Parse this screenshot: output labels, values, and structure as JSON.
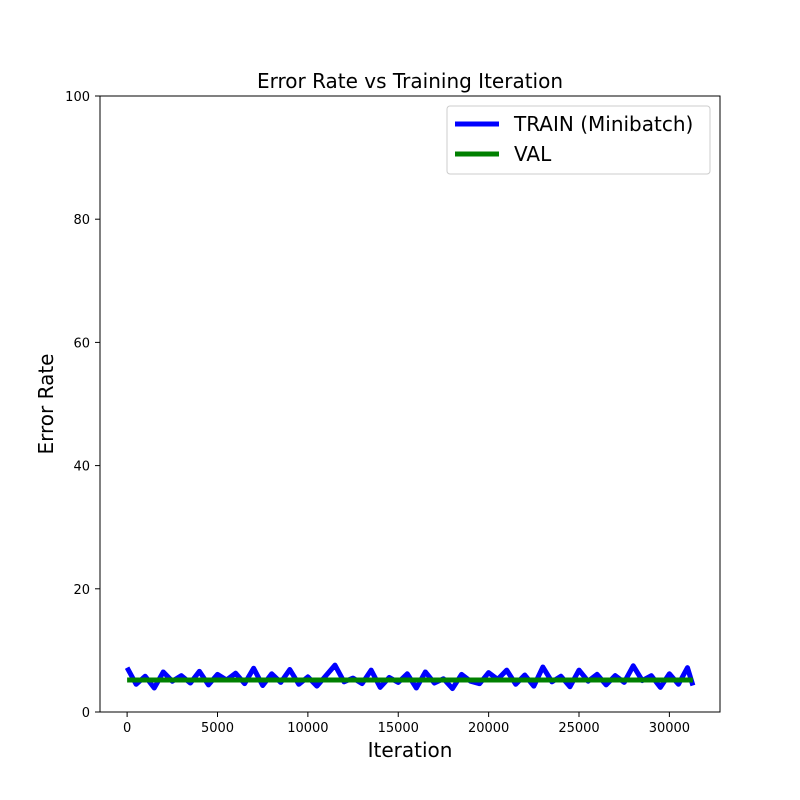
{
  "chart_data": {
    "type": "line",
    "title": "Error Rate vs Training Iteration",
    "xlabel": "Iteration",
    "ylabel": "Error Rate",
    "xlim": [
      -1500,
      32800
    ],
    "ylim": [
      0,
      100
    ],
    "xticks": [
      0,
      5000,
      10000,
      15000,
      20000,
      25000,
      30000
    ],
    "yticks": [
      0,
      20,
      40,
      60,
      80,
      100
    ],
    "grid": false,
    "legend_position": "top-right",
    "series": [
      {
        "name": "TRAIN (Minibatch)",
        "color": "#0000ff",
        "x": [
          0,
          500,
          1000,
          1500,
          2000,
          2500,
          3000,
          3500,
          4000,
          4500,
          5000,
          5500,
          6000,
          6500,
          7000,
          7500,
          8000,
          8500,
          9000,
          9500,
          10000,
          10500,
          11000,
          11500,
          12000,
          12500,
          13000,
          13500,
          14000,
          14500,
          15000,
          15500,
          16000,
          16500,
          17000,
          17500,
          18000,
          18500,
          19000,
          19500,
          20000,
          20500,
          21000,
          21500,
          22000,
          22500,
          23000,
          23500,
          24000,
          24500,
          25000,
          25500,
          26000,
          26500,
          27000,
          27500,
          28000,
          28500,
          29000,
          29500,
          30000,
          30500,
          31000,
          31300
        ],
        "y": [
          7.2,
          4.5,
          5.8,
          3.9,
          6.5,
          5.0,
          5.9,
          4.7,
          6.6,
          4.4,
          6.1,
          5.2,
          6.3,
          4.6,
          7.1,
          4.3,
          6.2,
          4.8,
          6.9,
          4.5,
          5.7,
          4.2,
          5.9,
          7.6,
          4.9,
          5.5,
          4.6,
          6.8,
          4.0,
          5.6,
          4.8,
          6.2,
          3.9,
          6.5,
          4.7,
          5.4,
          3.8,
          6.1,
          5.0,
          4.6,
          6.4,
          5.3,
          6.8,
          4.5,
          6.0,
          4.2,
          7.3,
          4.9,
          5.8,
          4.1,
          6.8,
          5.0,
          6.1,
          4.4,
          5.9,
          4.8,
          7.5,
          5.1,
          5.9,
          4.0,
          6.2,
          4.5,
          7.2,
          4.3
        ]
      },
      {
        "name": "VAL",
        "color": "#008000",
        "x": [
          0,
          31300
        ],
        "y": [
          5.2,
          5.2
        ]
      }
    ]
  }
}
